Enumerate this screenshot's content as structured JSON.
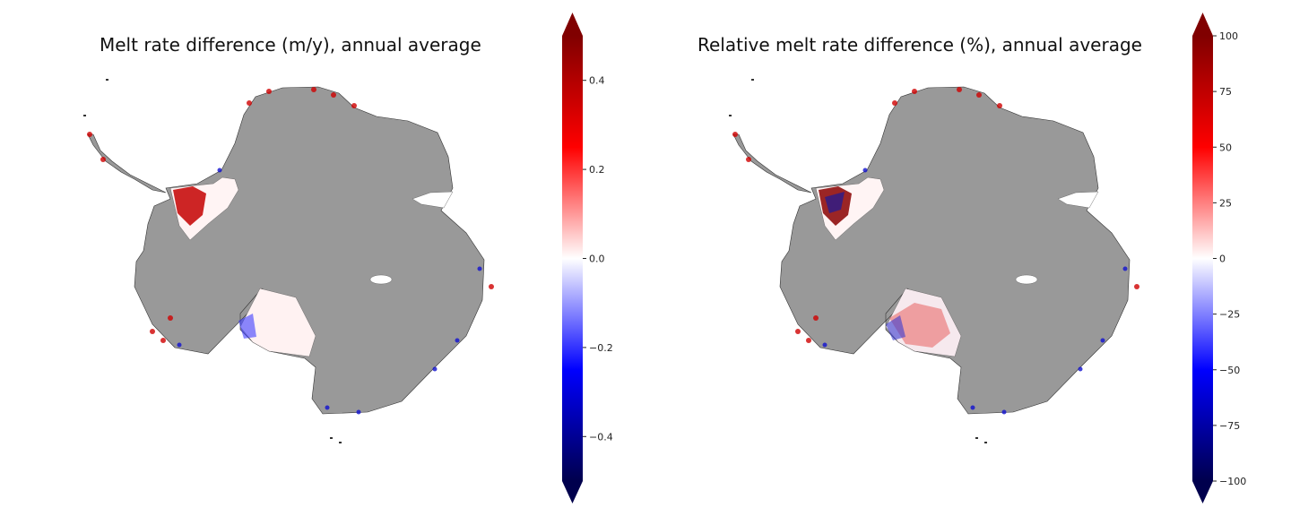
{
  "chart_data": [
    {
      "type": "heatmap",
      "title": "Melt rate difference (m/y), annual average",
      "colormap": "seismic",
      "colorbar": {
        "vmin": -0.5,
        "vmax": 0.5,
        "extend": "both",
        "ticks": [
          -0.4,
          -0.2,
          0.0,
          0.2,
          0.4
        ],
        "tick_labels": [
          "−0.4",
          "−0.2",
          "0.0",
          "0.2",
          "0.4"
        ]
      },
      "land_color": "#999999"
    },
    {
      "type": "heatmap",
      "title": "Relative melt rate difference (%), annual average",
      "colormap": "seismic",
      "colorbar": {
        "vmin": -100,
        "vmax": 100,
        "extend": "both",
        "ticks": [
          -100,
          -75,
          -50,
          -25,
          0,
          25,
          50,
          75,
          100
        ],
        "tick_labels": [
          "−100",
          "−75",
          "−50",
          "−25",
          "0",
          "25",
          "50",
          "75",
          "100"
        ]
      },
      "land_color": "#999999"
    }
  ]
}
